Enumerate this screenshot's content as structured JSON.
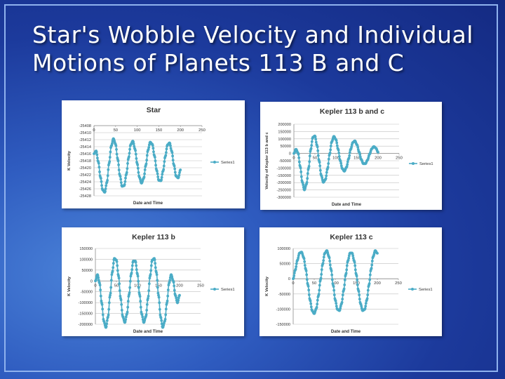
{
  "slide": {
    "title_line1": "Star's Wobble Velocity and Individual",
    "title_line2": "Motions of Planets 113 B and C",
    "background_color": "#1c3a9c",
    "series_color": "#4bacc6"
  },
  "chart_data": [
    {
      "type": "line",
      "title": "Star",
      "xlabel": "Date and Time",
      "ylabel": "K Velocity",
      "xlim": [
        0,
        250
      ],
      "ylim": [
        -25428,
        -25408
      ],
      "x_ticks": [
        "0",
        "50",
        "100",
        "150",
        "200",
        "250"
      ],
      "y_ticks": [
        "-25408",
        "-25410",
        "-25412",
        "-25414",
        "-25416",
        "-25418",
        "-25420",
        "-25422",
        "-25424",
        "-25426",
        "-25428"
      ],
      "grid": true,
      "legend": "right",
      "series": [
        {
          "name": "Series1",
          "x": [
            0,
            5,
            10,
            15,
            20,
            25,
            30,
            35,
            40,
            45,
            50,
            55,
            60,
            65,
            70,
            75,
            80,
            85,
            90,
            95,
            100,
            105,
            110,
            115,
            120,
            125,
            130,
            135,
            140,
            145,
            150,
            155,
            160,
            165,
            170,
            175,
            180,
            185,
            190,
            195,
            200
          ],
          "values": [
            -25416.0,
            -25415.2,
            -25418.3,
            -25422.7,
            -25426.3,
            -25427.0,
            -25424.1,
            -25418.7,
            -25413.8,
            -25411.7,
            -25413.3,
            -25417.6,
            -25422.2,
            -25425.3,
            -25425.1,
            -25421.8,
            -25417.2,
            -25413.4,
            -25412.4,
            -25414.7,
            -25418.8,
            -25422.7,
            -25424.4,
            -25423.0,
            -25419.3,
            -25415.0,
            -25412.7,
            -25413.3,
            -25416.6,
            -25420.7,
            -25423.6,
            -25423.7,
            -25420.9,
            -25416.8,
            -25413.5,
            -25412.9,
            -25415.3,
            -25419.2,
            -25422.4,
            -25422.9,
            -25420.6
          ]
        }
      ]
    },
    {
      "type": "line",
      "title": "Kepler 113 b and c",
      "xlabel": "Date and Time",
      "ylabel": "Velocity of Kepler 113 b and c",
      "xlim": [
        0,
        250
      ],
      "ylim": [
        -300000,
        200000
      ],
      "x_ticks": [
        "0",
        "50",
        "100",
        "150",
        "200",
        "250"
      ],
      "y_ticks": [
        "200000",
        "150000",
        "100000",
        "50000",
        "0",
        "-50000",
        "-100000",
        "-150000",
        "-200000",
        "-250000",
        "-300000"
      ],
      "grid": true,
      "legend": "right",
      "series": [
        {
          "name": "Series1",
          "x": [
            0,
            5,
            10,
            15,
            20,
            25,
            30,
            35,
            40,
            45,
            50,
            55,
            60,
            65,
            70,
            75,
            80,
            85,
            90,
            95,
            100,
            105,
            110,
            115,
            120,
            125,
            130,
            135,
            140,
            145,
            150,
            155,
            160,
            165,
            170,
            175,
            180,
            185,
            190,
            195,
            200
          ],
          "values": [
            0,
            29000,
            2000,
            -90000,
            -196000,
            -250000,
            -209000,
            -100000,
            26000,
            110000,
            120000,
            55000,
            -51000,
            -150000,
            -198000,
            -179000,
            -104000,
            -4000,
            80000,
            117000,
            95000,
            30000,
            -48000,
            -104000,
            -122000,
            -95000,
            -37000,
            29000,
            75000,
            86000,
            59000,
            9000,
            -41000,
            -70000,
            -70000,
            -45000,
            -4000,
            32000,
            47000,
            36000,
            8000
          ]
        }
      ]
    },
    {
      "type": "line",
      "title": "Kepler 113 b",
      "xlabel": "Date and Time",
      "ylabel": "K Velocity",
      "xlim": [
        0,
        250
      ],
      "ylim": [
        -200000,
        150000
      ],
      "x_ticks": [
        "0",
        "50",
        "100",
        "150",
        "200",
        "250"
      ],
      "y_ticks": [
        "150000",
        "100000",
        "50000",
        "0",
        "-50000",
        "-100000",
        "-150000",
        "-200000"
      ],
      "grid": true,
      "legend": "right",
      "series": [
        {
          "name": "Series1",
          "x": [
            0,
            5,
            10,
            15,
            20,
            25,
            30,
            35,
            40,
            45,
            50,
            55,
            60,
            65,
            70,
            75,
            80,
            85,
            90,
            95,
            100,
            105,
            110,
            115,
            120,
            125,
            130,
            135,
            140,
            145,
            150,
            155,
            160,
            165,
            170,
            175,
            180,
            185,
            190,
            195,
            200
          ],
          "values": [
            0,
            29000,
            -10000,
            -101000,
            -185000,
            -215000,
            -166000,
            -66000,
            39000,
            104000,
            96000,
            23000,
            -80000,
            -164000,
            -192000,
            -152000,
            -63000,
            31000,
            92000,
            92000,
            31000,
            -63000,
            -152000,
            -192000,
            -164000,
            -80000,
            23000,
            96000,
            104000,
            39000,
            -66000,
            -166000,
            -215000,
            -185000,
            -101000,
            -10000,
            29000,
            0,
            -66000,
            -101000,
            -66000
          ]
        }
      ]
    },
    {
      "type": "line",
      "title": "Kepler 113 c",
      "xlabel": "Date and Time",
      "ylabel": "K Velocity",
      "xlim": [
        0,
        250
      ],
      "ylim": [
        -150000,
        100000
      ],
      "x_ticks": [
        "0",
        "50",
        "100",
        "150",
        "200",
        "250"
      ],
      "y_ticks": [
        "100000",
        "50000",
        "0",
        "-50000",
        "-100000",
        "-150000"
      ],
      "grid": true,
      "legend": "right",
      "series": [
        {
          "name": "Series1",
          "x": [
            0,
            5,
            10,
            15,
            20,
            25,
            30,
            35,
            40,
            45,
            50,
            55,
            60,
            65,
            70,
            75,
            80,
            85,
            90,
            95,
            100,
            105,
            110,
            115,
            120,
            125,
            130,
            135,
            140,
            145,
            150,
            155,
            160,
            165,
            170,
            175,
            180,
            185,
            190,
            195,
            200
          ],
          "values": [
            0,
            29000,
            61000,
            85000,
            88000,
            70000,
            31000,
            -20000,
            -70000,
            -105000,
            -115000,
            -98000,
            -56000,
            -3000,
            48000,
            84000,
            93000,
            73000,
            31000,
            -21000,
            -70000,
            -101000,
            -105000,
            -82000,
            -38000,
            14000,
            59000,
            85000,
            85000,
            59000,
            14000,
            -38000,
            -82000,
            -105000,
            -101000,
            -70000,
            -21000,
            31000,
            73000,
            93000,
            84000
          ]
        }
      ]
    }
  ]
}
